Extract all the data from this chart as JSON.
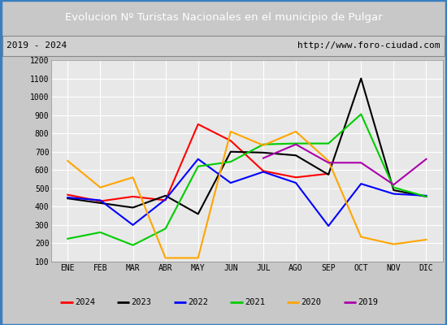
{
  "title": "Evolucion Nº Turistas Nacionales en el municipio de Pulgar",
  "subtitle_left": "2019 - 2024",
  "subtitle_right": "http://www.foro-ciudad.com",
  "months": [
    "ENE",
    "FEB",
    "MAR",
    "ABR",
    "MAY",
    "JUN",
    "JUL",
    "AGO",
    "SEP",
    "OCT",
    "NOV",
    "DIC"
  ],
  "series": {
    "2024": [
      465,
      430,
      455,
      435,
      850,
      760,
      595,
      560,
      580,
      null,
      null,
      null
    ],
    "2023": [
      445,
      420,
      395,
      460,
      360,
      700,
      695,
      680,
      575,
      1100,
      490,
      455
    ],
    "2022": [
      450,
      435,
      300,
      440,
      660,
      530,
      590,
      530,
      295,
      525,
      470,
      460
    ],
    "2021": [
      225,
      260,
      190,
      280,
      620,
      645,
      740,
      745,
      745,
      905,
      505,
      455
    ],
    "2020": [
      650,
      505,
      560,
      120,
      120,
      810,
      735,
      810,
      650,
      235,
      195,
      220
    ],
    "2019": [
      null,
      null,
      null,
      null,
      null,
      null,
      665,
      740,
      640,
      640,
      520,
      660
    ]
  },
  "colors": {
    "2024": "#ff0000",
    "2023": "#000000",
    "2022": "#0000ff",
    "2021": "#00cc00",
    "2020": "#ffa500",
    "2019": "#aa00aa"
  },
  "ylim": [
    100,
    1200
  ],
  "yticks": [
    100,
    200,
    300,
    400,
    500,
    600,
    700,
    800,
    900,
    1000,
    1100,
    1200
  ],
  "title_bg": "#3a7ebf",
  "title_color": "#ffffff",
  "plot_bg": "#e8e8e8",
  "grid_color": "#ffffff",
  "subtitle_bg": "#d0d0d0",
  "fig_bg": "#c8c8c8"
}
